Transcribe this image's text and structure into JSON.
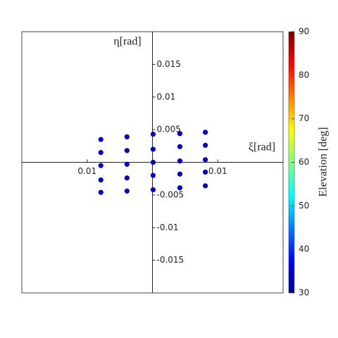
{
  "chart_data": {
    "type": "scatter",
    "x_label": "ξ[rad]",
    "y_label": "η[rad]",
    "colorbar_label": "Elevation [deg]",
    "clim": [
      30,
      90
    ],
    "cticks": [
      30,
      40,
      50,
      60,
      70,
      80,
      90
    ],
    "xlim": [
      -0.02,
      0.02
    ],
    "ylim": [
      -0.02,
      0.02
    ],
    "xticks": [
      {
        "value": -0.01,
        "label": "0.01"
      },
      {
        "value": 0.01,
        "label": "0.01"
      }
    ],
    "yticks": [
      0.015,
      0.01,
      0.005,
      -0.005,
      -0.01,
      -0.015
    ],
    "series": [
      {
        "color": "#0000c8",
        "x": [
          -0.0079,
          -0.0079,
          -0.0079,
          -0.0079,
          -0.0079,
          -0.0039,
          -0.0039,
          -0.0039,
          -0.0039,
          -0.0039,
          0.0001,
          0.0001,
          0.0001,
          0.0001,
          0.0001,
          0.0042,
          0.0042,
          0.0042,
          0.0042,
          0.0042,
          0.0081,
          0.0081,
          0.0081,
          0.0081,
          0.0081
        ],
        "values": [
          0.0035,
          0.0015,
          -0.0005,
          -0.0027,
          -0.0046,
          0.0039,
          0.0018,
          -0.0003,
          -0.0024,
          -0.0044,
          0.0043,
          0.002,
          0.0,
          -0.002,
          -0.0042,
          0.0044,
          0.0024,
          0.0002,
          -0.0018,
          -0.0039,
          0.0046,
          0.0026,
          0.0004,
          -0.0015,
          -0.0036
        ]
      }
    ]
  }
}
